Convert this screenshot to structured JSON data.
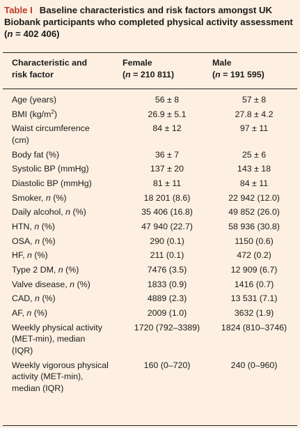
{
  "caption": {
    "label": "Table I",
    "text": "Baseline characteristics and risk factors amongst UK Biobank participants who completed physical activity assessment (",
    "n_symbol": "n",
    "n_value": " = 402 406)"
  },
  "columns": {
    "c1_line1": "Characteristic and",
    "c1_line2": "risk factor",
    "female_label": "Female",
    "female_n_prefix": "(",
    "female_n_symbol": "n",
    "female_n_value": " = 210 811)",
    "male_label": "Male",
    "male_n_prefix": "(",
    "male_n_symbol": "n",
    "male_n_value": " = 191 595)"
  },
  "rows": [
    {
      "label": "Age (years)",
      "female": "56 ± 8",
      "male": "57 ± 8"
    },
    {
      "label": "BMI (kg/m",
      "label_sup": "2",
      "label_end": ")",
      "female": "26.9 ± 5.1",
      "male": "27.8 ± 4.2"
    },
    {
      "label": "Waist circumference",
      "label_l2": "(cm)",
      "female": "84 ± 12",
      "male": "97 ± 11"
    },
    {
      "label": "Body fat (%)",
      "female": "36 ± 7",
      "male": "25 ± 6"
    },
    {
      "label": "Systolic BP (mmHg)",
      "female": "137 ± 20",
      "male": "143 ± 18"
    },
    {
      "label": "Diastolic BP (mmHg)",
      "female": "81 ± 11",
      "male": "84 ± 11"
    },
    {
      "label": "Smoker, ",
      "label_it": "n",
      "label_end": " (%)",
      "female": "18 201 (8.6)",
      "male": "22 942 (12.0)"
    },
    {
      "label": "Daily alcohol, ",
      "label_it": "n",
      "label_end": " (%)",
      "female": "35 406 (16.8)",
      "male": "49 852 (26.0)"
    },
    {
      "label": "HTN, ",
      "label_it": "n",
      "label_end": " (%)",
      "female": "47 940 (22.7)",
      "male": "58 936 (30.8)"
    },
    {
      "label": "OSA, ",
      "label_it": "n",
      "label_end": " (%)",
      "female": "290 (0.1)",
      "male": "1150 (0.6)"
    },
    {
      "label": "HF, ",
      "label_it": "n",
      "label_end": " (%)",
      "female": "211 (0.1)",
      "male": "472 (0.2)"
    },
    {
      "label": "Type 2 DM, ",
      "label_it": "n",
      "label_end": " (%)",
      "female": "7476 (3.5)",
      "male": "12 909 (6.7)"
    },
    {
      "label": "Valve disease, ",
      "label_it": "n",
      "label_end": " (%)",
      "female": "1833 (0.9)",
      "male": "1416 (0.7)"
    },
    {
      "label": "CAD, ",
      "label_it": "n",
      "label_end": " (%)",
      "female": "4889 (2.3)",
      "male": "13 531 (7.1)"
    },
    {
      "label": "AF, ",
      "label_it": "n",
      "label_end": " (%)",
      "female": "2009 (1.0)",
      "male": "3632 (1.9)"
    },
    {
      "label": "Weekly physical activity",
      "label_l2": "(MET-min), median",
      "label_l3": "(IQR)",
      "female": "1720 (792–3389)",
      "male": "1824 (810–3746)"
    },
    {
      "label": "Weekly vigorous physical",
      "label_l2": "activity (MET-min),",
      "label_l3": "median (IQR)",
      "female": "160 (0–720)",
      "male": "240 (0–960)"
    }
  ]
}
